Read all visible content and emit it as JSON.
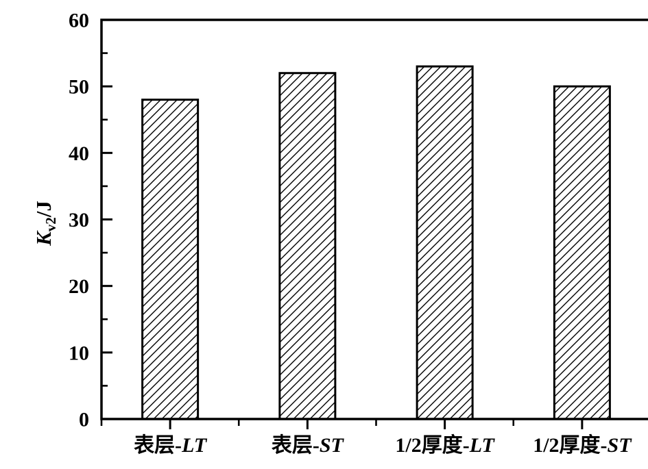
{
  "background_color": "#ffffff",
  "chart_data": {
    "type": "bar",
    "title": "",
    "categories": [
      {
        "label": "表层-LT",
        "prefix": "表层-",
        "italic_suffix": "LT"
      },
      {
        "label": "表层-ST",
        "prefix": "表层-",
        "italic_suffix": "ST"
      },
      {
        "label": "1/2厚度-LT",
        "prefix": "1/2厚度-",
        "italic_suffix": "LT"
      },
      {
        "label": "1/2厚度-ST",
        "prefix": "1/2厚度-",
        "italic_suffix": "ST"
      }
    ],
    "values": [
      48,
      52,
      53,
      50
    ],
    "xlabel": "",
    "ylabel": {
      "text": "K_v2/J",
      "symbol": "K",
      "subscript": "v2",
      "suffix": "/J"
    },
    "ylim": [
      0,
      60
    ],
    "ytick_major_step": 10,
    "ytick_minor_step": 5,
    "ytick_labels": [
      "0",
      "10",
      "20",
      "30",
      "40",
      "50",
      "60"
    ],
    "grid": false,
    "legend": null,
    "frame_box": true,
    "tick_style": "y-ticks-inside, x-ticks-outside, x-major-at-category-centers, x-minor-at-category-boundaries",
    "bar_style": {
      "fill_pattern": "diagonal-hatch",
      "hatch_angle_deg": 45,
      "hatch_spacing_px": 12,
      "fill_background": "#ffffff",
      "stroke_color": "#000000"
    },
    "axis_color": "#000000",
    "text_color": "#000000"
  }
}
